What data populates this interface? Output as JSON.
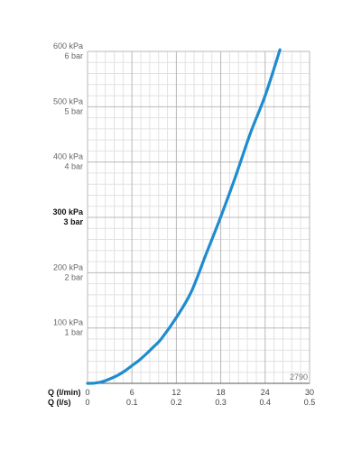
{
  "chart_data": {
    "type": "line",
    "series": [
      {
        "color": "#1f8ccf",
        "x_lmin": [
          0,
          1,
          2,
          3,
          4,
          5,
          6,
          7,
          8,
          9,
          10,
          12,
          14,
          16,
          18,
          20,
          22,
          24,
          26
        ],
        "y_kpa": [
          0,
          0.5,
          3,
          8,
          14,
          22,
          32,
          42,
          54,
          67,
          81,
          119,
          165,
          233,
          301,
          374,
          452,
          520,
          603
        ]
      }
    ],
    "xlim": [
      0,
      30
    ],
    "ylim": [
      0,
      600
    ],
    "x_ticks": [
      {
        "lmin": "0",
        "ls": "0"
      },
      {
        "lmin": "6",
        "ls": "0.1"
      },
      {
        "lmin": "12",
        "ls": "0.2"
      },
      {
        "lmin": "18",
        "ls": "0.3"
      },
      {
        "lmin": "24",
        "ls": "0.4"
      },
      {
        "lmin": "30",
        "ls": "0.5"
      }
    ],
    "y_ticks": [
      {
        "kpa": "100 kPa",
        "bar": "1 bar",
        "value": 100,
        "bold": false
      },
      {
        "kpa": "200 kPa",
        "bar": "2 bar",
        "value": 200,
        "bold": false
      },
      {
        "kpa": "300 kPa",
        "bar": "3 bar",
        "value": 300,
        "bold": true
      },
      {
        "kpa": "400 kPa",
        "bar": "4 bar",
        "value": 400,
        "bold": false
      },
      {
        "kpa": "500 kPa",
        "bar": "5 bar",
        "value": 500,
        "bold": false
      },
      {
        "kpa": "600 kPa",
        "bar": "6 bar",
        "value": 600,
        "bold": false
      }
    ],
    "xlabel_lmin": "Q (l/min)",
    "xlabel_ls": "Q (l/s)",
    "code": "2790",
    "grid": true,
    "major_grid_color": "#b8b8b8",
    "minor_grid_color": "#e2e2e2"
  }
}
